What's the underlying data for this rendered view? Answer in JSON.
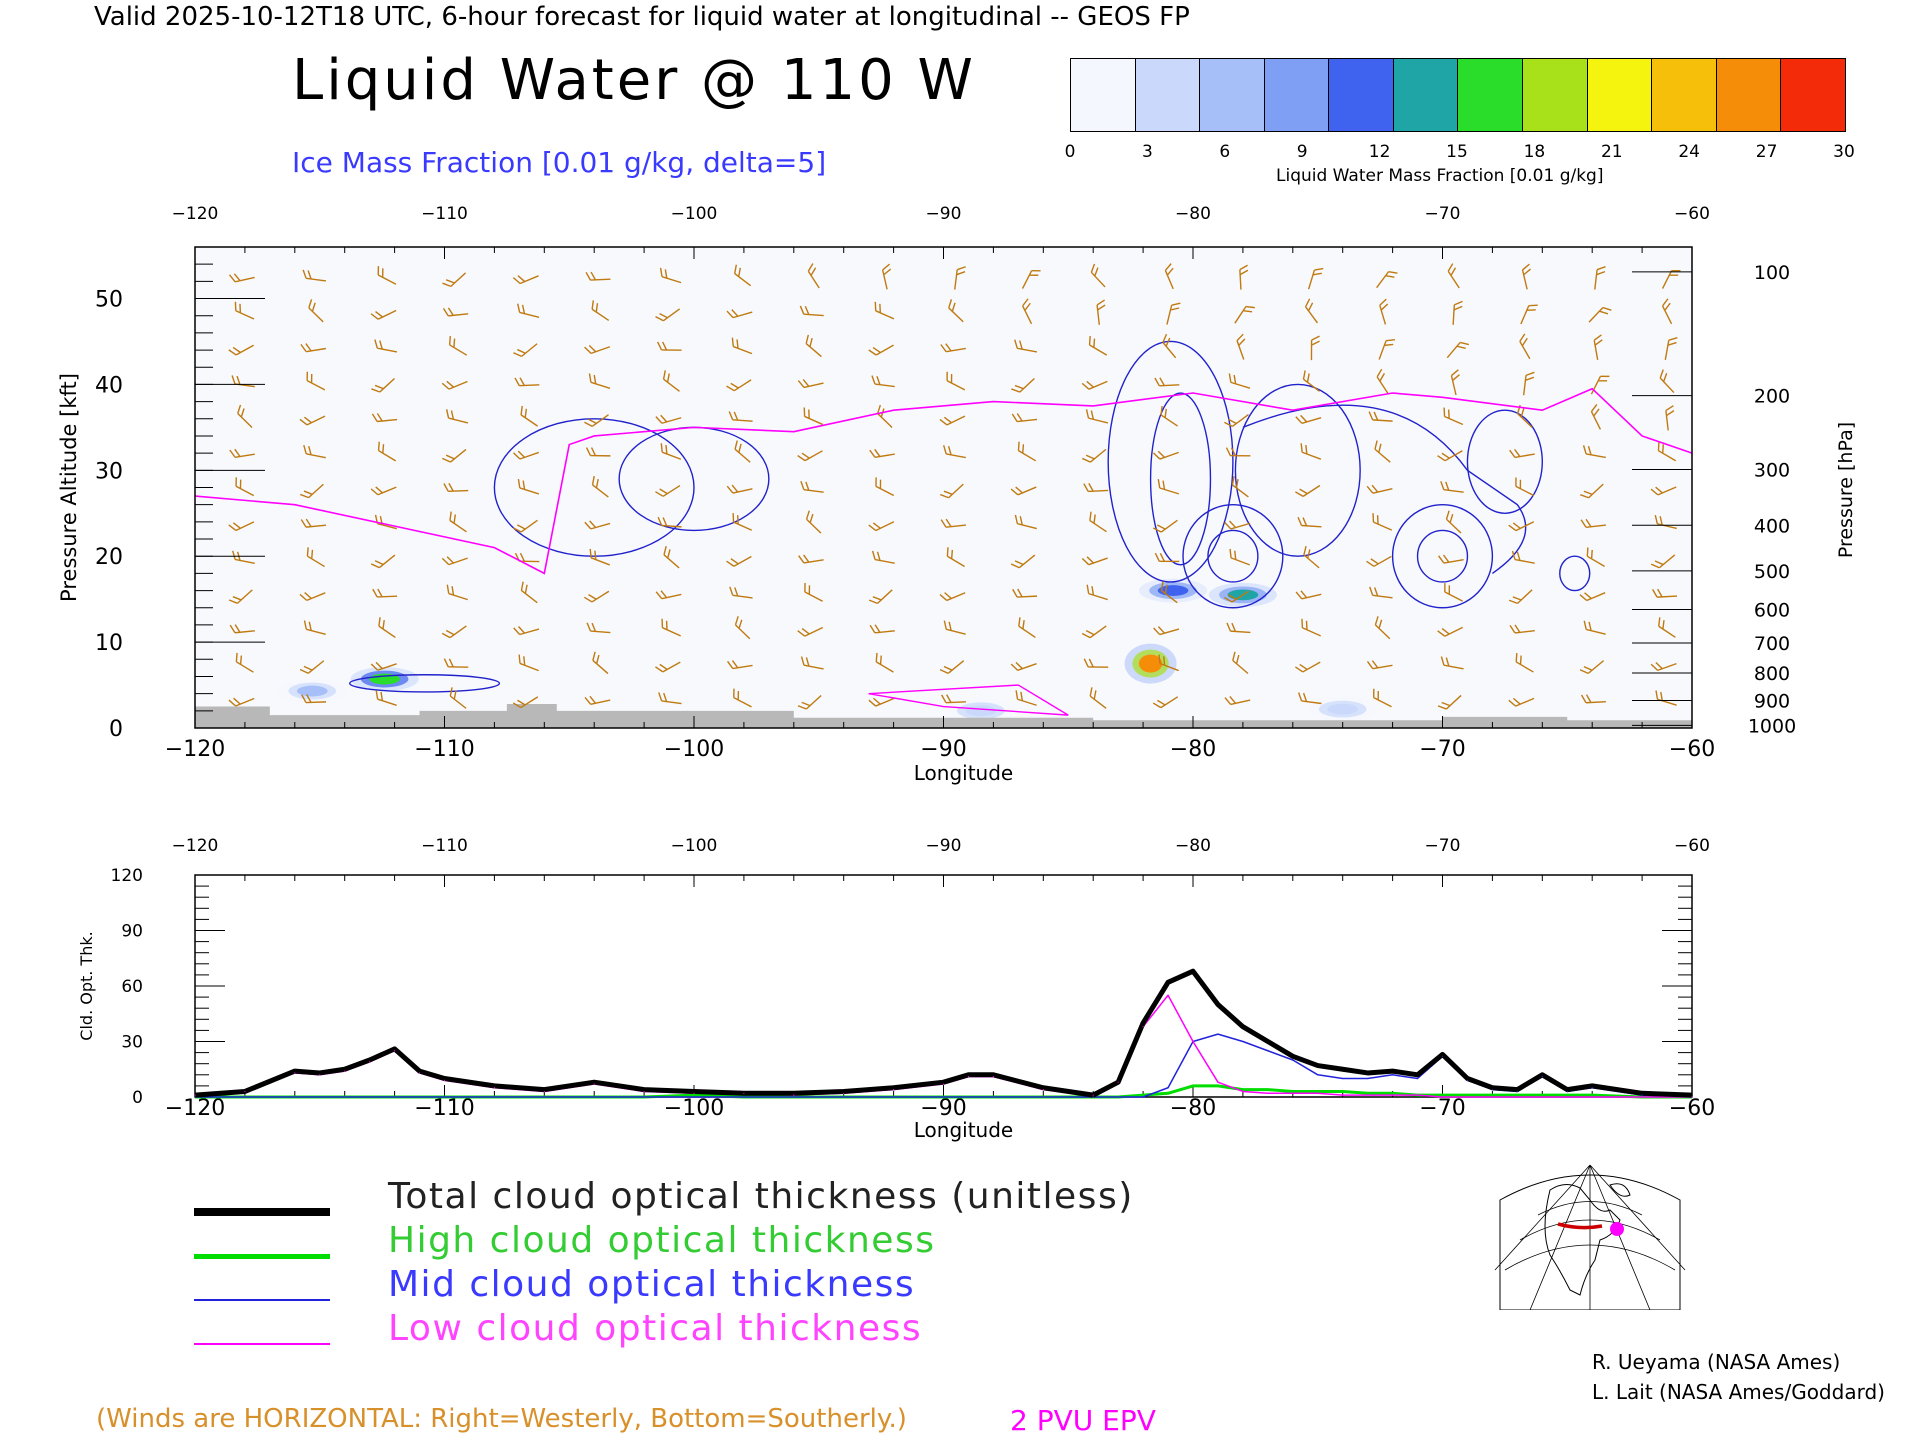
{
  "header": {
    "top_title": "Valid 2025-10-12T18 UTC, 6-hour forecast for liquid water at longitudinal -- GEOS FP",
    "main_title": "Liquid Water @ 110 W",
    "subtitle": "Ice Mass Fraction [0.01 g/kg, delta=5]"
  },
  "colorbar": {
    "ticks": [
      "0",
      "3",
      "6",
      "9",
      "12",
      "15",
      "18",
      "21",
      "24",
      "27",
      "30"
    ],
    "label": "Liquid Water Mass Fraction [0.01 g/kg]",
    "colors": [
      "#f4f7fe",
      "#c9d8fb",
      "#a6bff8",
      "#7f9ff4",
      "#3f63ee",
      "#1fa5a6",
      "#2bdd2b",
      "#a8e01a",
      "#f4f40e",
      "#f6bf09",
      "#f58d09",
      "#f32b09"
    ]
  },
  "chart_data": [
    {
      "type": "heatmap",
      "title": "Liquid Water @ 110 W",
      "xlabel": "Longitude",
      "ylabel": "Pressure Altitude [kft]",
      "y2label": "Pressure [hPa]",
      "xlim": [
        -120,
        -60
      ],
      "ylim": [
        0,
        56
      ],
      "x_ticks": [
        "-120",
        "-110",
        "-100",
        "-90",
        "-80",
        "-70",
        "-60"
      ],
      "y_ticks": [
        "0",
        "10",
        "20",
        "30",
        "40",
        "50"
      ],
      "pressure_ticks": [
        "100",
        "200",
        "300",
        "400",
        "500",
        "600",
        "700",
        "800",
        "900",
        "1000"
      ],
      "pressure_ticks_kft": [
        53.1,
        38.7,
        30.1,
        23.6,
        18.3,
        13.8,
        9.9,
        6.4,
        3.2,
        0.3
      ],
      "liquid_water_max_values": [
        {
          "lon": -81.7,
          "alt_kft": 7.5,
          "value": 28
        },
        {
          "lon": -78.0,
          "alt_kft": 15.5,
          "value": 15
        },
        {
          "lon": -80.8,
          "alt_kft": 16.0,
          "value": 13
        },
        {
          "lon": -112.4,
          "alt_kft": 5.7,
          "value": 16
        },
        {
          "lon": -115.3,
          "alt_kft": 4.3,
          "value": 7
        },
        {
          "lon": -88.5,
          "alt_kft": 2.0,
          "value": 5
        },
        {
          "lon": -74.0,
          "alt_kft": 2.2,
          "value": 5
        }
      ],
      "epv_2pvu_line": {
        "name": "2 PVU EPV",
        "lon": [
          -120,
          -116,
          -112,
          -108,
          -106,
          -105,
          -104,
          -100,
          -96,
          -92,
          -88,
          -84,
          -80,
          -76,
          -72,
          -70,
          -66,
          -64,
          -62,
          -61,
          -60
        ],
        "alt_kft": [
          27,
          26,
          23.5,
          21,
          18,
          33,
          34,
          35,
          34.5,
          37,
          38,
          37.5,
          39,
          37,
          39,
          38.5,
          37,
          39.5,
          34,
          33,
          32
        ]
      },
      "surface_color": "#b8b8b8",
      "wind_barb_color": "#c07a10",
      "epv_color": "#ff00ff",
      "ice_contour_color": "#2222cc"
    },
    {
      "type": "line",
      "xlabel": "Longitude",
      "ylabel": "Cld. Opt. Thk.",
      "xlim": [
        -120,
        -60
      ],
      "ylim": [
        0,
        120
      ],
      "x_ticks": [
        "-120",
        "-110",
        "-100",
        "-90",
        "-80",
        "-70",
        "-60"
      ],
      "y_ticks": [
        "0",
        "30",
        "60",
        "90",
        "120"
      ],
      "x": [
        -120,
        -118,
        -116,
        -115,
        -114,
        -113,
        -112,
        -111,
        -110,
        -108,
        -106,
        -104,
        -102,
        -100,
        -98,
        -96,
        -94,
        -92,
        -90,
        -89,
        -88,
        -86,
        -84,
        -83,
        -82,
        -81,
        -80,
        -79,
        -78,
        -77,
        -76,
        -75,
        -74,
        -73,
        -72,
        -71,
        -70,
        -69,
        -68,
        -67,
        -66,
        -65,
        -64,
        -62,
        -60
      ],
      "series": [
        {
          "name": "Total cloud optical thickness (unitless)",
          "color": "#000000",
          "width": 5,
          "values": [
            1,
            3,
            14,
            13,
            15,
            20,
            26,
            14,
            10,
            6,
            4,
            8,
            4,
            3,
            2,
            2,
            3,
            5,
            8,
            12,
            12,
            5,
            1,
            8,
            40,
            62,
            68,
            50,
            38,
            30,
            22,
            17,
            15,
            13,
            14,
            12,
            23,
            10,
            5,
            4,
            12,
            4,
            6,
            2,
            1
          ]
        },
        {
          "name": "High cloud optical thickness",
          "color": "#00dd00",
          "width": 3,
          "values": [
            0,
            0,
            0,
            0,
            0,
            0,
            0,
            0,
            0,
            0,
            0,
            0,
            0,
            1,
            0,
            0,
            0,
            0,
            0,
            0,
            0,
            0,
            0,
            0,
            1,
            2,
            6,
            6,
            4,
            4,
            3,
            3,
            3,
            2,
            2,
            1,
            1,
            1,
            1,
            1,
            1,
            1,
            1,
            0,
            0
          ]
        },
        {
          "name": "Mid cloud optical thickness",
          "color": "#2222dd",
          "width": 1.5,
          "values": [
            0,
            0,
            0,
            0,
            0,
            0,
            0,
            0,
            0,
            0,
            0,
            0,
            0,
            0,
            0,
            0,
            0,
            0,
            0,
            0,
            0,
            0,
            0,
            0,
            0,
            5,
            30,
            34,
            30,
            25,
            20,
            12,
            10,
            10,
            12,
            10,
            22,
            9,
            4,
            3,
            11,
            3,
            5,
            1,
            0
          ]
        },
        {
          "name": "Low cloud optical thickness",
          "color": "#ff00ff",
          "width": 1.5,
          "values": [
            1,
            3,
            13,
            12,
            14,
            19,
            25,
            13,
            9,
            5,
            3,
            7,
            3,
            2,
            2,
            1,
            2,
            4,
            7,
            11,
            11,
            4,
            1,
            8,
            38,
            55,
            30,
            8,
            3,
            2,
            2,
            2,
            1,
            1,
            1,
            1,
            0,
            0,
            0,
            0,
            0,
            0,
            0,
            0,
            0
          ]
        }
      ]
    }
  ],
  "legend": {
    "total": "Total cloud optical thickness (unitless)",
    "high": "High cloud optical thickness",
    "mid": "Mid cloud optical thickness",
    "low": "Low cloud optical thickness"
  },
  "footer": {
    "wind_note": "(Winds are HORIZONTAL: Right=Westerly, Bottom=Southerly.)",
    "pvu_label": "2 PVU EPV",
    "credit1": "R. Ueyama (NASA Ames)",
    "credit2": "L. Lait (NASA Ames/Goddard)"
  }
}
